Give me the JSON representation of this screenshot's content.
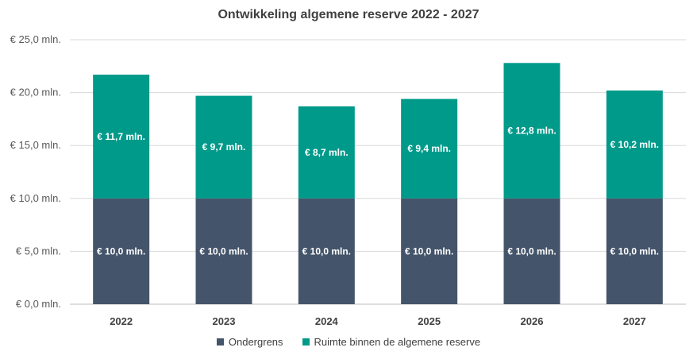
{
  "chart_data": {
    "type": "bar",
    "stacked": true,
    "title": "Ontwikkeling algemene reserve 2022 - 2027",
    "categories": [
      "2022",
      "2023",
      "2024",
      "2025",
      "2026",
      "2027"
    ],
    "series": [
      {
        "name": "Ondergrens",
        "color": "#44546a",
        "values": [
          10.0,
          10.0,
          10.0,
          10.0,
          10.0,
          10.0
        ],
        "labels": [
          "€ 10,0 mln.",
          "€ 10,0 mln.",
          "€ 10,0 mln.",
          "€ 10,0 mln.",
          "€ 10,0 mln.",
          "€ 10,0 mln."
        ]
      },
      {
        "name": "Ruimte binnen de algemene reserve",
        "color": "#009a8a",
        "values": [
          11.7,
          9.7,
          8.7,
          9.4,
          12.8,
          10.2
        ],
        "labels": [
          "€ 11,7 mln.",
          "€ 9,7 mln.",
          "€ 8,7 mln.",
          "€ 9,4 mln.",
          "€ 12,8 mln.",
          "€ 10,2 mln."
        ]
      }
    ],
    "ylim": [
      0,
      25
    ],
    "yticks": [
      0,
      5,
      10,
      15,
      20,
      25
    ],
    "ytick_labels": [
      "€ 0,0 mln.",
      "€ 5,0 mln.",
      "€ 10,0 mln.",
      "€ 15,0 mln.",
      "€ 20,0 mln.",
      "€ 25,0 mln."
    ],
    "grid": true,
    "legend_position": "bottom"
  }
}
